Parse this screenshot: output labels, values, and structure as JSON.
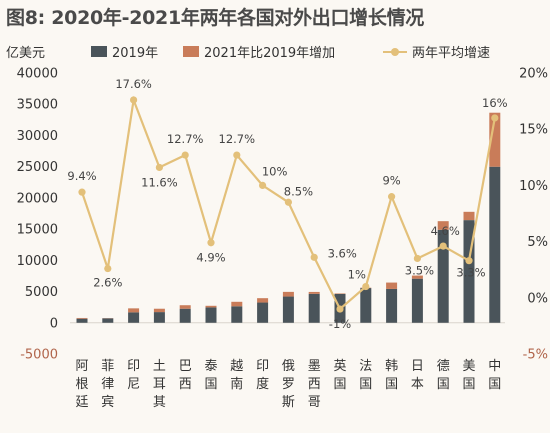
{
  "title": "图8: 2020年-2021年两年各国对外出口增长情况",
  "y_left_unit": "亿美元",
  "legend": {
    "series1": "2019年",
    "series2": "2021年比2019年增加",
    "series3": "两年平均增速"
  },
  "colors": {
    "bar2019": "#4a545a",
    "barIncrease": "#c97c59",
    "line": "#e3c07a",
    "negative": "#b0644a"
  },
  "chart_data": {
    "type": "bar",
    "categories": [
      "阿根廷",
      "菲律宾",
      "印尼",
      "土耳其",
      "巴西",
      "泰国",
      "越南",
      "印度",
      "俄罗斯",
      "墨西哥",
      "英国",
      "法国",
      "韩国",
      "日本",
      "德国",
      "美国",
      "中国"
    ],
    "series": [
      {
        "name": "2019年",
        "type": "bar",
        "axis": "left",
        "values": [
          650,
          710,
          1670,
          1710,
          2250,
          2460,
          2640,
          3240,
          4200,
          4630,
          4690,
          5560,
          5420,
          7060,
          14890,
          16440,
          24990
        ]
      },
      {
        "name": "2021年比2019年增加",
        "type": "bar",
        "axis": "left",
        "values": [
          120,
          30,
          640,
          540,
          560,
          260,
          720,
          700,
          750,
          310,
          -80,
          60,
          1020,
          500,
          1380,
          1330,
          8650
        ]
      },
      {
        "name": "两年平均增速",
        "type": "line",
        "axis": "right",
        "values": [
          9.4,
          2.6,
          17.6,
          11.6,
          12.7,
          4.9,
          12.7,
          10,
          8.5,
          3.6,
          -1,
          1,
          9,
          3.5,
          4.6,
          3.3,
          16
        ]
      }
    ],
    "line_labels": [
      "9.4%",
      "2.6%",
      "17.6%",
      "11.6%",
      "12.7%",
      "4.9%",
      "12.7%",
      "10%",
      "8.5%",
      "3.6%",
      "-1%",
      "1%",
      "9%",
      "3.5%",
      "4.6%",
      "3.3%",
      "16%"
    ],
    "y_left": {
      "min": -5000,
      "max": 40000,
      "ticks": [
        -5000,
        0,
        5000,
        10000,
        15000,
        20000,
        25000,
        30000,
        35000,
        40000
      ],
      "tick_labels": [
        "-5000",
        "0",
        "5000",
        "10000",
        "15000",
        "20000",
        "25000",
        "30000",
        "35000",
        "40000"
      ]
    },
    "y_right": {
      "min": -5,
      "max": 20,
      "ticks": [
        -5,
        0,
        5,
        10,
        15,
        20
      ],
      "tick_labels": [
        "-5%",
        "0%",
        "5%",
        "10%",
        "15%",
        "20%"
      ]
    },
    "grid": false,
    "legend_position": "top"
  }
}
